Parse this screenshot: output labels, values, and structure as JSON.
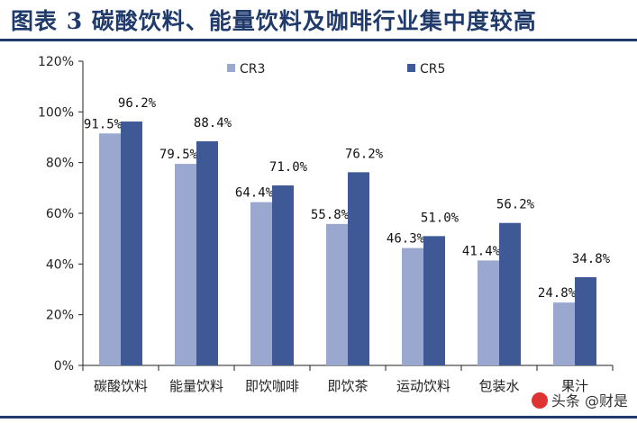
{
  "figure": {
    "title": "图表 3   碳酸饮料、能量饮料及咖啡行业集中度较高"
  },
  "watermark": {
    "text": "头条 @财是"
  },
  "colors": {
    "cr3": "#9aa8cf",
    "cr5": "#3f5996",
    "frame": "#1f3a6b"
  },
  "chart_data": {
    "type": "bar",
    "categories": [
      "碳酸饮料",
      "能量饮料",
      "即饮咖啡",
      "即饮茶",
      "运动饮料",
      "包装水",
      "果汁"
    ],
    "series": [
      {
        "name": "CR3",
        "values": [
          91.5,
          79.5,
          64.4,
          55.8,
          46.3,
          41.4,
          24.8
        ]
      },
      {
        "name": "CR5",
        "values": [
          96.2,
          88.4,
          71.0,
          76.2,
          51.0,
          56.2,
          34.8
        ]
      }
    ],
    "value_labels": {
      "CR3": [
        "91.5%",
        "79.5%",
        "64.4%",
        "55.8%",
        "46.3%",
        "41.4%",
        "24.8%"
      ],
      "CR5": [
        "96.2%",
        "88.4%",
        "71.0%",
        "76.2%",
        "51.0%",
        "56.2%",
        "34.8%"
      ]
    },
    "yticks": [
      "0%",
      "20%",
      "40%",
      "60%",
      "80%",
      "100%",
      "120%"
    ],
    "ylim": [
      0,
      120
    ],
    "xlabel": "",
    "ylabel": "",
    "grid": false,
    "legend": "top"
  }
}
